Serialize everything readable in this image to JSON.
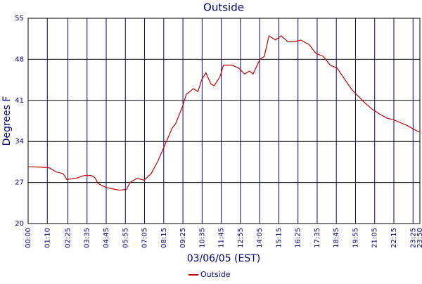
{
  "chart_data": {
    "type": "line",
    "title": "Outside",
    "x_label": "03/06/05 (EST)",
    "y_label": "Degrees F",
    "x": [
      0,
      51,
      77,
      103,
      128,
      141,
      180,
      205,
      231,
      244,
      256,
      282,
      308,
      333,
      359,
      372,
      397,
      423,
      449,
      474,
      500,
      526,
      538,
      564,
      577,
      603,
      620,
      633,
      649,
      667,
      679,
      700,
      713,
      744,
      769,
      790,
      808,
      821,
      846,
      862,
      879,
      903,
      923,
      949,
      974,
      995,
      1026,
      1051,
      1077,
      1103,
      1128,
      1154,
      1179,
      1205,
      1231,
      1256,
      1282,
      1308,
      1333,
      1359,
      1385,
      1410,
      1428
    ],
    "series": [
      {
        "name": "Outside",
        "color": "#c00000",
        "values": [
          29.7,
          29.6,
          29.5,
          28.8,
          28.5,
          27.5,
          27.8,
          28.2,
          28.2,
          27.8,
          26.8,
          26.2,
          25.9,
          25.7,
          25.8,
          27,
          27.7,
          27.4,
          28.5,
          30.7,
          33.5,
          36.3,
          37,
          40,
          42,
          43,
          42.5,
          44.5,
          45.7,
          43.8,
          43.5,
          45,
          47,
          47,
          46.5,
          45.5,
          46,
          45.5,
          48,
          48.5,
          52,
          51.3,
          52,
          51,
          51,
          51.3,
          50.5,
          49,
          48.5,
          47,
          46.5,
          44.7,
          43,
          41.7,
          40.5,
          39.5,
          38.7,
          38,
          37.7,
          37.2,
          36.7,
          36,
          35.6
        ]
      }
    ],
    "xlim": [
      0,
      1430
    ],
    "xticks": [
      {
        "value": 0,
        "label": "00:00"
      },
      {
        "value": 70,
        "label": "01:10"
      },
      {
        "value": 145,
        "label": "02:25"
      },
      {
        "value": 215,
        "label": "03:35"
      },
      {
        "value": 285,
        "label": "04:45"
      },
      {
        "value": 355,
        "label": "05:55"
      },
      {
        "value": 425,
        "label": "07:05"
      },
      {
        "value": 495,
        "label": "08:15"
      },
      {
        "value": 565,
        "label": "09:25"
      },
      {
        "value": 635,
        "label": "10:35"
      },
      {
        "value": 705,
        "label": "11:45"
      },
      {
        "value": 775,
        "label": "12:55"
      },
      {
        "value": 845,
        "label": "14:05"
      },
      {
        "value": 915,
        "label": "15:15"
      },
      {
        "value": 985,
        "label": "16:25"
      },
      {
        "value": 1055,
        "label": "17:35"
      },
      {
        "value": 1125,
        "label": "18:45"
      },
      {
        "value": 1195,
        "label": "19:55"
      },
      {
        "value": 1265,
        "label": "21:05"
      },
      {
        "value": 1335,
        "label": "22:15"
      },
      {
        "value": 1405,
        "label": "23:25"
      },
      {
        "value": 1430,
        "label": "23:50"
      }
    ],
    "ylim": [
      20,
      55
    ],
    "yticks": [
      20,
      27,
      34,
      41,
      48,
      55
    ],
    "grid": true
  }
}
